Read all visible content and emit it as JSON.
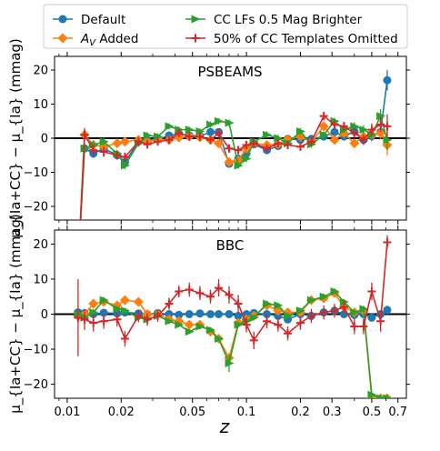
{
  "chart_data": [
    {
      "type": "line",
      "title": "PSBEAMS",
      "ylabel": "μ_{Ia+CC} − μ_{Ia} (mmag)",
      "xlabel": "",
      "xscale": "log",
      "xlim": [
        0.0085,
        0.78
      ],
      "ylim": [
        -24,
        24
      ],
      "yticks": [
        -20,
        -10,
        0,
        10,
        20
      ],
      "legend": "top, above panels",
      "series": [
        {
          "name": "Default",
          "color": "#1f77b4",
          "marker": "circle",
          "x": [
            0.0115,
            0.0125,
            0.014,
            0.016,
            0.019,
            0.021,
            0.025,
            0.028,
            0.032,
            0.037,
            0.042,
            0.048,
            0.055,
            0.063,
            0.07,
            0.08,
            0.09,
            0.1,
            0.11,
            0.13,
            0.15,
            0.17,
            0.2,
            0.23,
            0.27,
            0.31,
            0.35,
            0.4,
            0.45,
            0.5,
            0.56,
            0.61
          ],
          "y": [
            -38,
            -3.0,
            -4.5,
            -3.0,
            -5.0,
            -7.0,
            -1.0,
            -0.6,
            -0.3,
            0.8,
            1.3,
            0.8,
            0.6,
            1.8,
            1.8,
            -7.5,
            -6.0,
            -4.5,
            -1.8,
            -3.5,
            -2.3,
            -0.2,
            -0.5,
            -0.2,
            0.5,
            1.8,
            0.5,
            2.0,
            -0.5,
            0.6,
            1.8,
            17.0
          ],
          "yerr": [
            4,
            1.5,
            1.3,
            1.2,
            1.1,
            1.1,
            1.0,
            1.0,
            0.9,
            0.9,
            0.9,
            0.9,
            0.9,
            0.9,
            0.9,
            1.0,
            1.0,
            1.0,
            1.0,
            1.0,
            1.0,
            1.0,
            1.0,
            1.0,
            1.0,
            1.0,
            1.0,
            1.2,
            1.3,
            1.5,
            2.0,
            3.0
          ]
        },
        {
          "name": "A_V Added",
          "color": "#ff7f0e",
          "marker": "diamond",
          "x": [
            0.0115,
            0.0125,
            0.014,
            0.016,
            0.019,
            0.021,
            0.025,
            0.028,
            0.032,
            0.037,
            0.042,
            0.048,
            0.055,
            0.063,
            0.07,
            0.08,
            0.09,
            0.1,
            0.11,
            0.13,
            0.15,
            0.17,
            0.2,
            0.23,
            0.27,
            0.31,
            0.35,
            0.4,
            0.45,
            0.5,
            0.56,
            0.61
          ],
          "y": [
            -38,
            1.0,
            -2.0,
            -2.5,
            -1.5,
            -1.0,
            -0.5,
            -1.0,
            -0.3,
            -0.5,
            0.2,
            0.5,
            0.3,
            -0.5,
            -1.5,
            -7.0,
            -6.5,
            -3.0,
            -1.5,
            -2.0,
            -1.8,
            -0.3,
            0.5,
            -1.2,
            3.5,
            -0.5,
            1.5,
            -1.5,
            0.5,
            1.0,
            1.5,
            -2.0
          ],
          "yerr": [
            4,
            1.5,
            1.3,
            1.2,
            1.1,
            1.1,
            1.0,
            1.0,
            0.9,
            0.9,
            0.9,
            0.9,
            0.9,
            0.9,
            0.9,
            1.0,
            1.0,
            1.0,
            1.0,
            1.0,
            1.0,
            1.0,
            1.0,
            1.0,
            1.0,
            1.0,
            1.0,
            1.2,
            1.3,
            1.5,
            2.0,
            3.0
          ]
        },
        {
          "name": "CC LFs 0.5 Mag Brighter",
          "color": "#2ca02c",
          "marker": "triangle-right",
          "x": [
            0.0115,
            0.0125,
            0.014,
            0.016,
            0.019,
            0.021,
            0.025,
            0.028,
            0.032,
            0.037,
            0.042,
            0.048,
            0.055,
            0.063,
            0.07,
            0.08,
            0.09,
            0.1,
            0.11,
            0.13,
            0.15,
            0.17,
            0.2,
            0.23,
            0.27,
            0.31,
            0.35,
            0.4,
            0.45,
            0.5,
            0.56,
            0.61
          ],
          "y": [
            -38,
            -3.0,
            -2.0,
            -1.0,
            -4.5,
            -8.0,
            -1.5,
            0.8,
            0.5,
            3.5,
            2.5,
            2.5,
            2.0,
            4.0,
            5.0,
            4.5,
            -8.0,
            -6.0,
            -1.0,
            1.0,
            0.0,
            -1.5,
            2.0,
            -1.8,
            1.0,
            5.0,
            2.5,
            3.5,
            2.5,
            1.0,
            6.5,
            -0.5
          ],
          "yerr": [
            4,
            1.5,
            1.3,
            1.2,
            1.1,
            1.1,
            1.0,
            1.0,
            0.9,
            0.9,
            0.9,
            0.9,
            0.9,
            0.9,
            0.9,
            1.0,
            1.0,
            1.0,
            1.0,
            1.0,
            1.0,
            1.0,
            1.0,
            1.0,
            1.0,
            1.0,
            1.0,
            1.2,
            1.3,
            1.5,
            2.0,
            3.0
          ]
        },
        {
          "name": "50% of CC Templates Omitted",
          "color": "#d62728",
          "marker": "plus",
          "x": [
            0.0115,
            0.0125,
            0.014,
            0.016,
            0.019,
            0.021,
            0.025,
            0.028,
            0.032,
            0.037,
            0.042,
            0.048,
            0.055,
            0.063,
            0.07,
            0.08,
            0.09,
            0.1,
            0.11,
            0.13,
            0.15,
            0.17,
            0.2,
            0.23,
            0.27,
            0.31,
            0.35,
            0.4,
            0.45,
            0.5,
            0.56,
            0.61
          ],
          "y": [
            -38,
            1.0,
            -3.5,
            -4.0,
            -5.0,
            -5.5,
            -1.0,
            -1.8,
            -1.0,
            -0.5,
            1.5,
            0.5,
            0.5,
            -0.5,
            1.5,
            -3.0,
            -3.5,
            -2.0,
            -1.5,
            -3.0,
            -1.5,
            -2.0,
            -2.5,
            -1.0,
            6.5,
            4.0,
            3.5,
            1.5,
            -0.5,
            2.5,
            4.0,
            3.5
          ],
          "yerr": [
            6,
            2.0,
            1.6,
            1.5,
            1.3,
            1.3,
            1.2,
            1.2,
            1.1,
            1.1,
            1.1,
            1.1,
            1.1,
            1.1,
            1.1,
            1.2,
            1.2,
            1.2,
            1.2,
            1.2,
            1.2,
            1.2,
            1.2,
            1.2,
            1.2,
            1.2,
            1.3,
            1.4,
            1.5,
            1.8,
            2.2,
            3.5
          ]
        }
      ]
    },
    {
      "type": "line",
      "title": "BBC",
      "ylabel": "μ_{Ia+CC} − μ_{Ia} (mmag)",
      "xlabel": "z",
      "xscale": "log",
      "xlim": [
        0.0085,
        0.78
      ],
      "ylim": [
        -24,
        24
      ],
      "yticks": [
        -20,
        -10,
        0,
        10,
        20
      ],
      "xticks": [
        0.01,
        0.02,
        0.05,
        0.1,
        0.2,
        0.3,
        0.5,
        0.7
      ],
      "xticklabels": [
        "0.01",
        "0.02",
        "0.05",
        "0.1",
        "0.2",
        "0.3",
        "0.5",
        "0.7"
      ],
      "series": [
        {
          "name": "Default",
          "color": "#1f77b4",
          "marker": "circle",
          "x": [
            0.0115,
            0.0125,
            0.014,
            0.016,
            0.019,
            0.021,
            0.025,
            0.028,
            0.032,
            0.037,
            0.042,
            0.048,
            0.055,
            0.063,
            0.07,
            0.08,
            0.09,
            0.1,
            0.11,
            0.13,
            0.15,
            0.17,
            0.2,
            0.23,
            0.27,
            0.31,
            0.35,
            0.4,
            0.45,
            0.5,
            0.56,
            0.61
          ],
          "y": [
            0.5,
            0.3,
            0.0,
            0.4,
            0.2,
            0.5,
            0.2,
            0.0,
            0.3,
            0.0,
            -0.2,
            0.0,
            0.2,
            0.0,
            0.0,
            0.0,
            -0.5,
            0.0,
            0.3,
            0.0,
            -0.5,
            -1.5,
            0.0,
            -0.5,
            0.5,
            1.0,
            0.0,
            -0.2,
            0.0,
            -1.0,
            0.0,
            1.2
          ],
          "yerr": [
            1.2,
            1.0,
            0.9,
            0.9,
            0.8,
            0.8,
            0.8,
            0.8,
            0.7,
            0.7,
            0.7,
            0.7,
            0.7,
            0.7,
            0.7,
            0.7,
            0.7,
            0.7,
            0.7,
            0.7,
            0.7,
            0.7,
            0.7,
            0.7,
            0.7,
            0.7,
            0.7,
            0.8,
            0.8,
            0.9,
            1.0,
            1.2
          ]
        },
        {
          "name": "A_V Added",
          "color": "#ff7f0e",
          "marker": "diamond",
          "x": [
            0.0115,
            0.0125,
            0.014,
            0.016,
            0.019,
            0.021,
            0.025,
            0.028,
            0.032,
            0.037,
            0.042,
            0.048,
            0.055,
            0.063,
            0.07,
            0.08,
            0.09,
            0.1,
            0.11,
            0.13,
            0.15,
            0.17,
            0.2,
            0.23,
            0.27,
            0.31,
            0.35,
            0.4,
            0.45,
            0.5,
            0.56,
            0.61
          ],
          "y": [
            -0.5,
            0.0,
            3.0,
            3.5,
            2.5,
            4.0,
            3.5,
            0.0,
            0.0,
            -1.5,
            -2.0,
            -3.0,
            -3.0,
            -5.0,
            -7.0,
            -12.5,
            -2.5,
            -1.5,
            -0.5,
            2.5,
            1.0,
            0.5,
            0.5,
            4.0,
            4.5,
            6.0,
            2.0,
            0.5,
            1.0,
            -24.0,
            -24.0,
            -24.0
          ],
          "yerr": [
            1.2,
            1.0,
            0.9,
            0.9,
            0.8,
            0.8,
            0.8,
            0.8,
            0.7,
            0.7,
            0.7,
            0.7,
            0.7,
            0.7,
            0.7,
            1.2,
            0.9,
            0.8,
            0.8,
            0.8,
            0.8,
            0.8,
            0.8,
            0.8,
            0.8,
            0.8,
            0.8,
            0.8,
            0.9,
            1.0,
            1.0,
            1.0
          ]
        },
        {
          "name": "CC LFs 0.5 Mag Brighter",
          "color": "#2ca02c",
          "marker": "triangle-right",
          "x": [
            0.0115,
            0.0125,
            0.014,
            0.016,
            0.019,
            0.021,
            0.025,
            0.028,
            0.032,
            0.037,
            0.042,
            0.048,
            0.055,
            0.063,
            0.07,
            0.08,
            0.09,
            0.1,
            0.11,
            0.13,
            0.15,
            0.17,
            0.2,
            0.23,
            0.27,
            0.31,
            0.35,
            0.4,
            0.45,
            0.5,
            0.56,
            0.61
          ],
          "y": [
            0.0,
            -1.0,
            0.5,
            4.0,
            1.5,
            1.0,
            -1.0,
            -1.5,
            -0.5,
            -2.0,
            -3.0,
            -5.0,
            -3.5,
            -4.5,
            -7.0,
            -14.0,
            -3.0,
            -2.0,
            -1.0,
            3.0,
            2.5,
            -0.5,
            1.0,
            4.0,
            5.0,
            6.5,
            3.5,
            0.5,
            1.5,
            -23.0,
            -24.0,
            -24.0
          ],
          "yerr": [
            1.2,
            1.0,
            1.0,
            0.9,
            0.8,
            0.8,
            0.8,
            0.8,
            0.7,
            0.7,
            0.7,
            0.7,
            0.7,
            0.7,
            0.7,
            2.5,
            0.9,
            0.8,
            0.8,
            0.8,
            0.8,
            0.8,
            0.8,
            0.8,
            0.8,
            0.8,
            0.8,
            0.8,
            0.9,
            1.0,
            1.0,
            1.0
          ]
        },
        {
          "name": "50% of CC Templates Omitted",
          "color": "#d62728",
          "marker": "plus",
          "x": [
            0.0115,
            0.0125,
            0.014,
            0.016,
            0.019,
            0.021,
            0.025,
            0.028,
            0.032,
            0.037,
            0.042,
            0.048,
            0.055,
            0.063,
            0.07,
            0.08,
            0.09,
            0.1,
            0.11,
            0.13,
            0.15,
            0.17,
            0.2,
            0.23,
            0.27,
            0.31,
            0.35,
            0.4,
            0.45,
            0.5,
            0.56,
            0.61
          ],
          "y": [
            -1.0,
            -1.5,
            -2.5,
            -2.0,
            -1.5,
            -7.0,
            -0.5,
            -1.5,
            -0.5,
            3.0,
            6.5,
            7.0,
            6.0,
            5.0,
            7.5,
            5.5,
            3.0,
            -3.0,
            -7.5,
            -2.0,
            -3.0,
            -5.5,
            -2.5,
            -0.5,
            0.5,
            1.0,
            2.0,
            -3.5,
            -3.5,
            6.5,
            -2.0,
            20.5
          ],
          "yerr": [
            11.0,
            3.0,
            2.5,
            2.2,
            2.0,
            2.2,
            1.8,
            1.8,
            1.7,
            1.7,
            1.7,
            2.0,
            2.0,
            2.0,
            2.5,
            2.5,
            2.5,
            2.2,
            2.5,
            2.0,
            2.0,
            2.0,
            2.0,
            2.0,
            2.0,
            2.0,
            2.0,
            2.2,
            2.2,
            2.5,
            3.0,
            2.0
          ]
        }
      ]
    }
  ],
  "legend": {
    "items": [
      {
        "label": "Default",
        "color": "#1f77b4",
        "marker": "circle"
      },
      {
        "label": "A_V Added",
        "color": "#ff7f0e",
        "marker": "diamond"
      },
      {
        "label": "CC LFs 0.5 Mag Brighter",
        "color": "#2ca02c",
        "marker": "triangle-right"
      },
      {
        "label": "50% of CC Templates Omitted",
        "color": "#d62728",
        "marker": "plus"
      }
    ]
  }
}
